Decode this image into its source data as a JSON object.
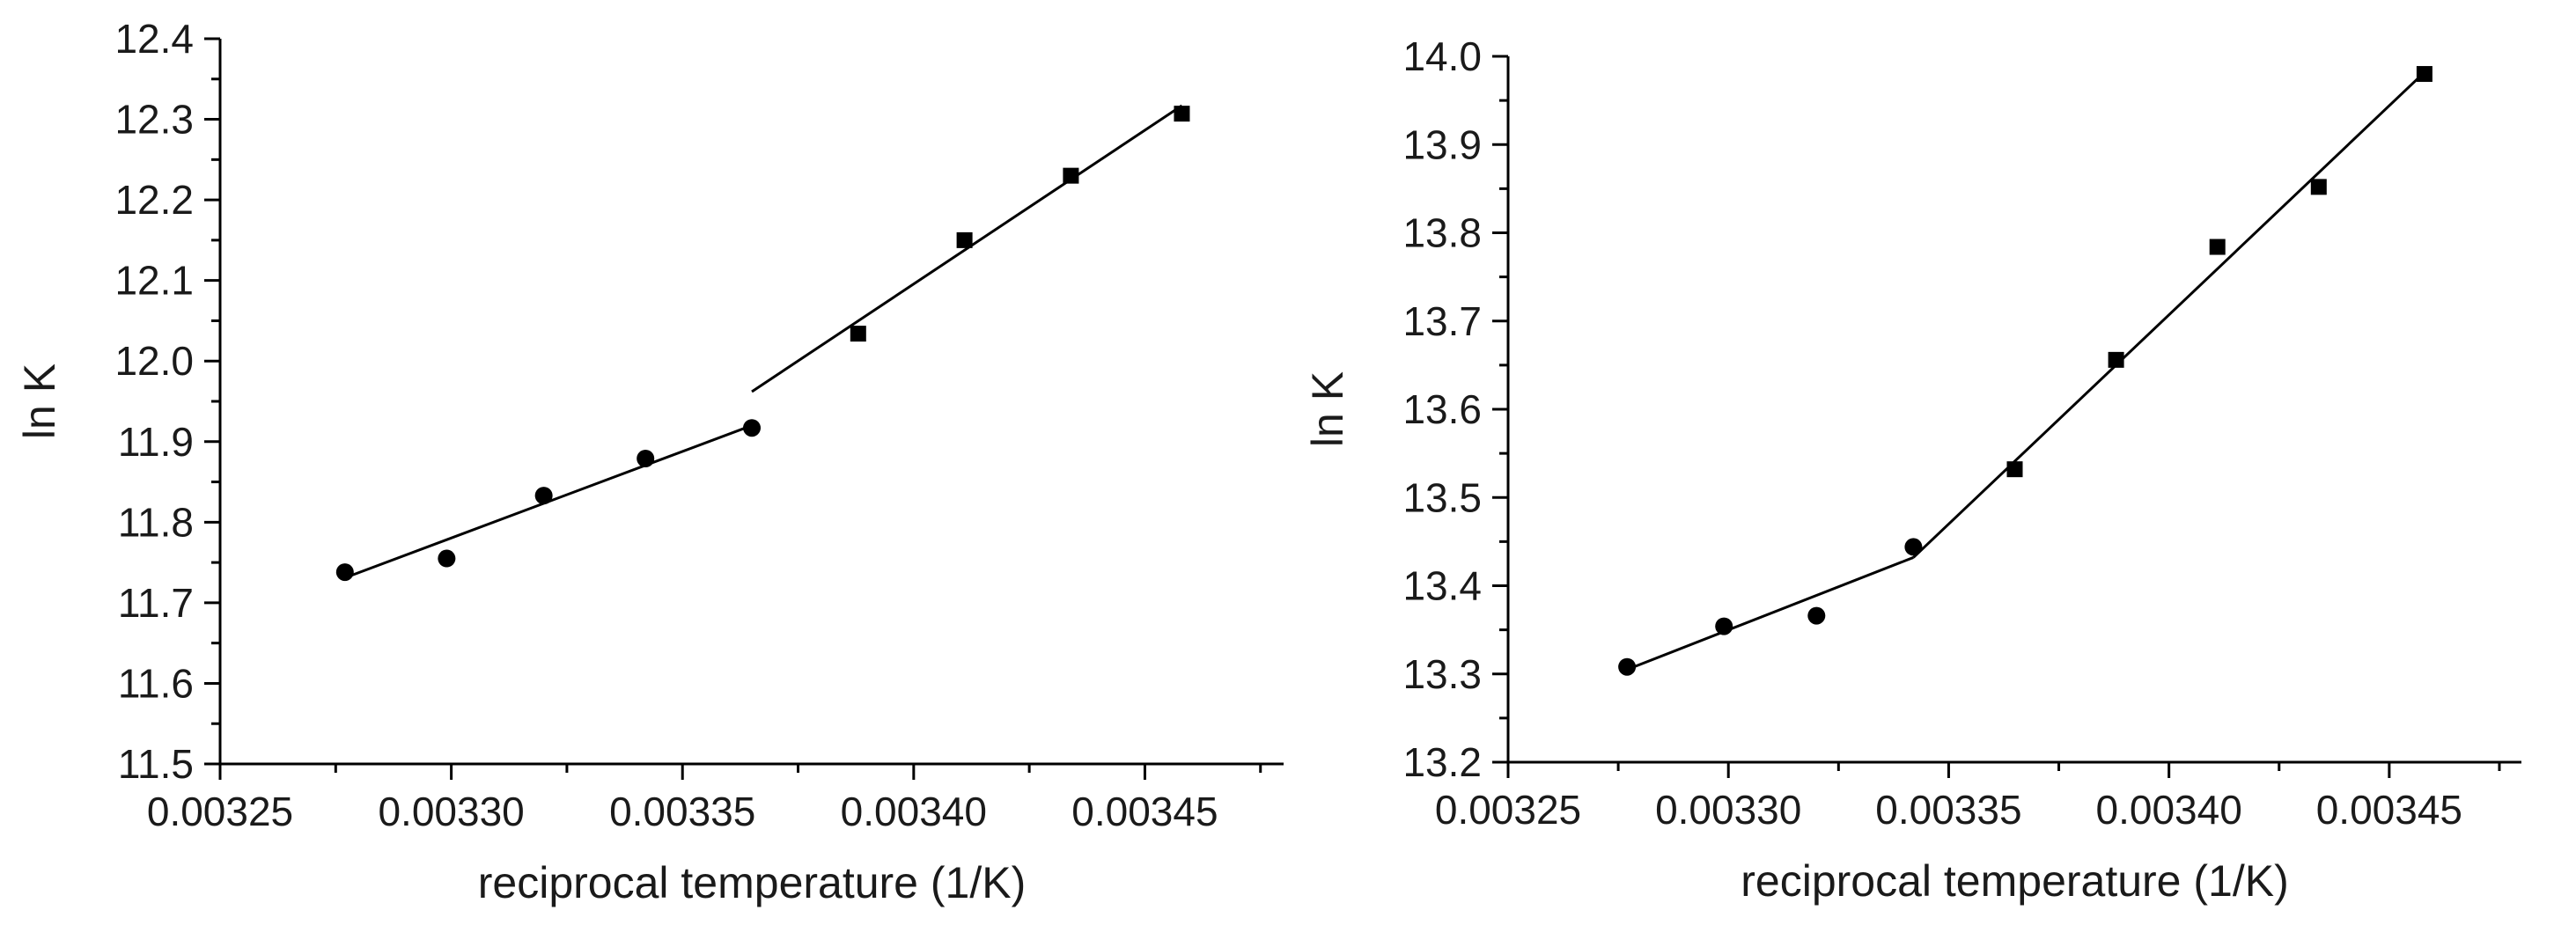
{
  "chart_data": [
    {
      "type": "scatter",
      "title": "",
      "xlabel": "reciprocal temperature (1/K)",
      "ylabel": "ln K",
      "xlim": [
        0.00325,
        0.00348
      ],
      "ylim": [
        11.5,
        12.4
      ],
      "xticks": [
        "0.00325",
        "0.00330",
        "0.00335",
        "0.00340",
        "0.00345"
      ],
      "yticks": [
        "11.5",
        "11.6",
        "11.7",
        "11.8",
        "11.9",
        "12.0",
        "12.1",
        "12.2",
        "12.3",
        "12.4"
      ],
      "grid": false,
      "legend": "none",
      "series": [
        {
          "marker": "circle",
          "x": [
            0.003277,
            0.003299,
            0.00332,
            0.003342,
            0.003365
          ],
          "y": [
            11.738,
            11.755,
            11.833,
            11.879,
            11.917
          ],
          "fit": {
            "x": [
              0.003277,
              0.003365
            ],
            "y": [
              11.731,
              11.92
            ]
          }
        },
        {
          "marker": "square",
          "x": [
            0.003388,
            0.003411,
            0.003434,
            0.003458
          ],
          "y": [
            12.034,
            12.15,
            12.23,
            12.307
          ],
          "fit": {
            "x": [
              0.003365,
              0.003458
            ],
            "y": [
              11.962,
              12.317
            ]
          }
        }
      ]
    },
    {
      "type": "scatter",
      "title": "",
      "xlabel": "reciprocal temperature (1/K)",
      "ylabel": "ln K",
      "xlim": [
        0.00325,
        0.00348
      ],
      "ylim": [
        13.2,
        14.0
      ],
      "xticks": [
        "0.00325",
        "0.00330",
        "0.00335",
        "0.00340",
        "0.00345"
      ],
      "yticks": [
        "13.2",
        "13.3",
        "13.4",
        "13.5",
        "13.6",
        "13.7",
        "13.8",
        "13.9",
        "14.0"
      ],
      "grid": false,
      "legend": "none",
      "series": [
        {
          "marker": "circle",
          "x": [
            0.003277,
            0.003299,
            0.00332,
            0.003342
          ],
          "y": [
            13.308,
            13.354,
            13.366,
            13.444
          ],
          "fit": {
            "x": [
              0.003277,
              0.003342
            ],
            "y": [
              13.305,
              13.432
            ]
          }
        },
        {
          "marker": "square",
          "x": [
            0.003365,
            0.003388,
            0.003411,
            0.003434,
            0.003458
          ],
          "y": [
            13.532,
            13.656,
            13.784,
            13.852,
            13.98
          ],
          "fit": {
            "x": [
              0.003342,
              0.003458
            ],
            "y": [
              13.432,
              13.982
            ]
          }
        }
      ]
    }
  ]
}
